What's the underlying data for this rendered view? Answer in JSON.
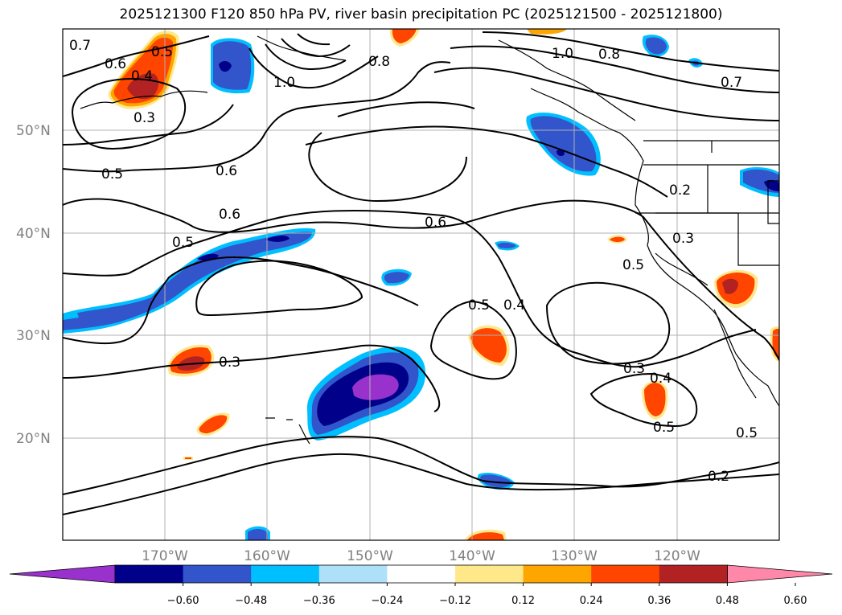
{
  "title": "2025121300 F120 850 hPa PV, river basin precipitation PC (2025121500 - 2025121800)",
  "lat_labels": [
    "50°N",
    "40°N",
    "30°N",
    "20°N"
  ],
  "lon_labels": [
    "170°W",
    "160°W",
    "150°W",
    "140°W",
    "130°W",
    "120°W"
  ],
  "contour_labels": [
    "0.7",
    "0.6",
    "0.5",
    "0.4",
    "0.3",
    "1.0",
    "0.8",
    "1.0",
    "0.8",
    "0.7",
    "0.5",
    "0.6",
    "0.6",
    "0.5",
    "0.6",
    "0.2",
    "0.3",
    "0.5",
    "0.5",
    "0.4",
    "0.3",
    "0.4",
    "0.5",
    "0.3",
    "0.5",
    "0.2"
  ],
  "colorbar": {
    "colors": [
      "#9932cc",
      "#00008b",
      "#3355cc",
      "#00bfff",
      "#aee1f9",
      "#ffffff",
      "#ffe88a",
      "#ffa500",
      "#ff4500",
      "#b22222",
      "#ff88aa"
    ],
    "ticks": [
      "−0.60",
      "−0.48",
      "−0.36",
      "−0.24",
      "−0.12",
      "0.12",
      "0.24",
      "0.36",
      "0.48",
      "0.60"
    ]
  }
}
